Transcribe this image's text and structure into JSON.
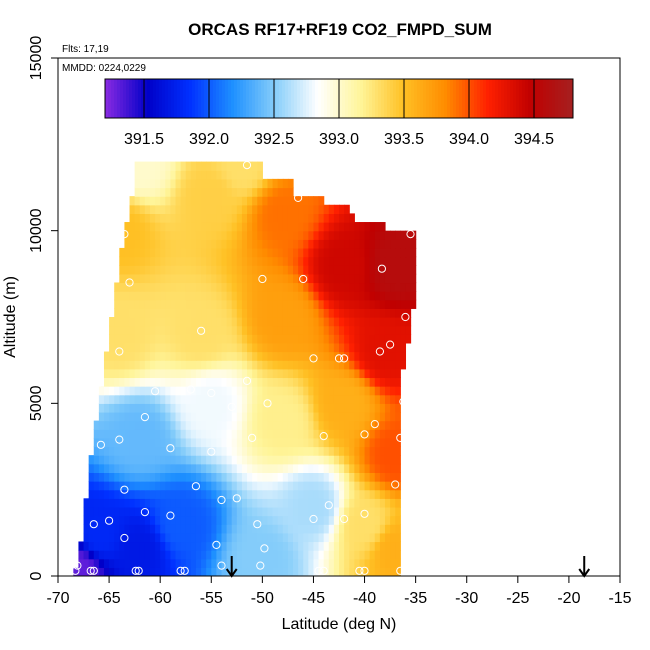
{
  "chart_data": {
    "type": "heatmap",
    "title": "ORCAS RF17+RF19 CO2_FMPD_SUM",
    "annotation_flights": "Flts: 17,19",
    "annotation_dates": "MMDD: 0224,0229",
    "xlabel": "Latitude (deg N)",
    "ylabel": "Altitude (m)",
    "xlim": [
      -70,
      -15
    ],
    "ylim": [
      0,
      15000
    ],
    "x_ticks": [
      -70,
      -65,
      -60,
      -55,
      -50,
      -45,
      -40,
      -35,
      -30,
      -25,
      -20,
      -15
    ],
    "x_tick_labels": [
      "-70",
      "-65",
      "-60",
      "-55",
      "-50",
      "-45",
      "-40",
      "-35",
      "-30",
      "-25",
      "-20",
      "-15"
    ],
    "y_ticks": [
      0,
      5000,
      10000,
      15000
    ],
    "y_tick_labels": [
      "0",
      "5000",
      "10000",
      "15000"
    ],
    "colorbar": {
      "min": 391.2,
      "max": 394.8,
      "ticks": [
        391.5,
        392.0,
        392.5,
        393.0,
        393.5,
        394.0,
        394.5
      ],
      "tick_labels": [
        "391.5",
        "392.0",
        "392.5",
        "393.0",
        "393.5",
        "394.0",
        "394.5"
      ],
      "colors": [
        "#8a2be2",
        "#0000c8",
        "#0030ff",
        "#1e90ff",
        "#87cefa",
        "#ffffff",
        "#fff59a",
        "#ffc125",
        "#ff8c00",
        "#ff2000",
        "#c00000",
        "#a52020"
      ]
    },
    "field_anchors": [
      {
        "lat": -68,
        "alt": 200,
        "value": 391.3
      },
      {
        "lat": -66,
        "alt": 1200,
        "value": 391.8
      },
      {
        "lat": -62,
        "alt": 800,
        "value": 391.7
      },
      {
        "lat": -58,
        "alt": 1500,
        "value": 392.0
      },
      {
        "lat": -50,
        "alt": 500,
        "value": 392.5
      },
      {
        "lat": -45,
        "alt": 2000,
        "value": 392.6
      },
      {
        "lat": -40,
        "alt": 1500,
        "value": 393.3
      },
      {
        "lat": -37,
        "alt": 800,
        "value": 393.6
      },
      {
        "lat": -37,
        "alt": 3500,
        "value": 394.0
      },
      {
        "lat": -62,
        "alt": 4000,
        "value": 392.4
      },
      {
        "lat": -55,
        "alt": 5000,
        "value": 392.8
      },
      {
        "lat": -48,
        "alt": 4500,
        "value": 393.2
      },
      {
        "lat": -42,
        "alt": 5000,
        "value": 393.6
      },
      {
        "lat": -38,
        "alt": 6500,
        "value": 394.3
      },
      {
        "lat": -64,
        "alt": 7000,
        "value": 393.3
      },
      {
        "lat": -56,
        "alt": 7000,
        "value": 393.3
      },
      {
        "lat": -48,
        "alt": 7500,
        "value": 393.7
      },
      {
        "lat": -42,
        "alt": 9000,
        "value": 394.4
      },
      {
        "lat": -37,
        "alt": 9000,
        "value": 394.6
      },
      {
        "lat": -64,
        "alt": 10000,
        "value": 393.5
      },
      {
        "lat": -55,
        "alt": 11000,
        "value": 393.4
      },
      {
        "lat": -48,
        "alt": 10500,
        "value": 393.9
      },
      {
        "lat": -62,
        "alt": 11900,
        "value": 393.0
      },
      {
        "lat": -52,
        "alt": 11900,
        "value": 393.3
      }
    ],
    "sample_points": [
      [
        -68.3,
        150
      ],
      [
        -68.1,
        300
      ],
      [
        -66.5,
        150
      ],
      [
        -66.8,
        150
      ],
      [
        -62.4,
        150
      ],
      [
        -62.1,
        150
      ],
      [
        -58.0,
        150
      ],
      [
        -57.6,
        150
      ],
      [
        -54.0,
        300
      ],
      [
        -50.2,
        300
      ],
      [
        -44.5,
        150
      ],
      [
        -44.0,
        150
      ],
      [
        -40.5,
        150
      ],
      [
        -40.0,
        150
      ],
      [
        -36.5,
        150
      ],
      [
        -54.5,
        900
      ],
      [
        -49.8,
        800
      ],
      [
        -63.5,
        1100
      ],
      [
        -50.5,
        1500
      ],
      [
        -45.0,
        1650
      ],
      [
        -42.0,
        1650
      ],
      [
        -40.0,
        1800
      ],
      [
        -66.5,
        1500
      ],
      [
        -65.0,
        1600
      ],
      [
        -59.0,
        1750
      ],
      [
        -61.5,
        1850
      ],
      [
        -43.5,
        2050
      ],
      [
        -54.0,
        2200
      ],
      [
        -52.5,
        2250
      ],
      [
        -56.5,
        2600
      ],
      [
        -67.5,
        2500
      ],
      [
        -63.5,
        2500
      ],
      [
        -37.0,
        2650
      ],
      [
        -51.0,
        4000
      ],
      [
        -55.0,
        3600
      ],
      [
        -59.0,
        3700
      ],
      [
        -64.0,
        3950
      ],
      [
        -65.8,
        3800
      ],
      [
        -67.0,
        3850
      ],
      [
        -36.5,
        4000
      ],
      [
        -44.0,
        4050
      ],
      [
        -40.0,
        4100
      ],
      [
        -61.5,
        4600
      ],
      [
        -53.0,
        4900
      ],
      [
        -49.5,
        5000
      ],
      [
        -39.0,
        4400
      ],
      [
        -36.2,
        5050
      ],
      [
        -55.0,
        5300
      ],
      [
        -57.0,
        5400
      ],
      [
        -60.5,
        5350
      ],
      [
        -66.0,
        5600
      ],
      [
        -51.5,
        5650
      ],
      [
        -45.0,
        6300
      ],
      [
        -42.5,
        6300
      ],
      [
        -42.0,
        6300
      ],
      [
        -38.5,
        6500
      ],
      [
        -37.5,
        6700
      ],
      [
        -65.5,
        6800
      ],
      [
        -64.0,
        6500
      ],
      [
        -56.0,
        7100
      ],
      [
        -36.0,
        7500
      ],
      [
        -50.0,
        8600
      ],
      [
        -46.0,
        8600
      ],
      [
        -38.3,
        8900
      ],
      [
        -63.0,
        8500
      ],
      [
        -63.5,
        9900
      ],
      [
        -35.5,
        9900
      ],
      [
        -46.5,
        10950
      ],
      [
        -51.5,
        11900
      ]
    ],
    "arrows_latitude": [
      -53,
      -18.5
    ]
  }
}
